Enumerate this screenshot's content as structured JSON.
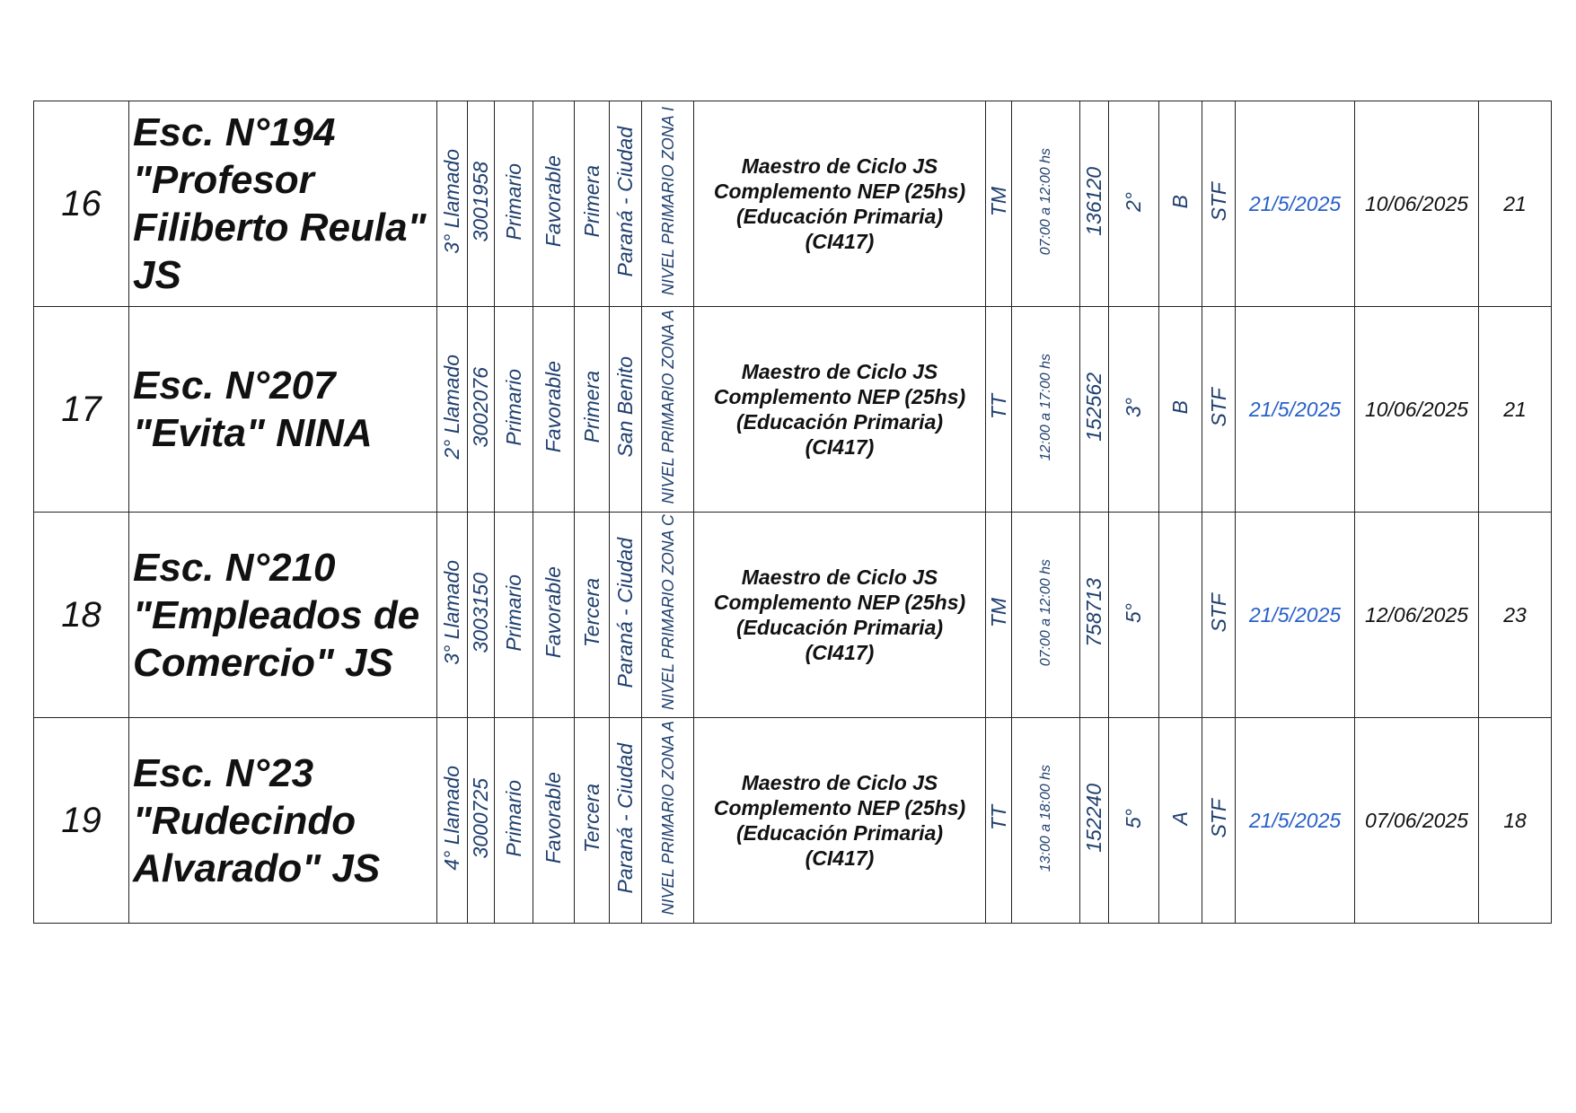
{
  "rows": [
    {
      "num": "16",
      "school": "Esc. N°194 \"Profesor Filiberto Reula\" JS",
      "llamado": "3° Llamado",
      "code": "3001958",
      "level": "Primario",
      "status": "Favorable",
      "category": "Primera",
      "location": "Paraná - Ciudad",
      "zone": "NIVEL PRIMARIO ZONA I",
      "cargo": [
        "Maestro de Ciclo JS",
        "Complemento NEP (25hs)",
        "(Educación Primaria)",
        "(CI417)"
      ],
      "turno": "TM",
      "horario": "07:00 a 12:00 hs",
      "id": "136120",
      "grado": "2°",
      "seccion": "B",
      "tipo": "STF",
      "fecha1": "21/5/2025",
      "fecha2": "10/06/2025",
      "dias": "21"
    },
    {
      "num": "17",
      "school": "Esc. N°207 \"Evita\" NINA",
      "llamado": "2° Llamado",
      "code": "3002076",
      "level": "Primario",
      "status": "Favorable",
      "category": "Primera",
      "location": "San Benito",
      "zone": "NIVEL PRIMARIO ZONA A",
      "cargo": [
        "Maestro de Ciclo JS",
        "Complemento NEP (25hs)",
        "(Educación Primaria)",
        "(CI417)"
      ],
      "turno": "TT",
      "horario": "12:00 a 17:00 hs",
      "id": "152562",
      "grado": "3°",
      "seccion": "B",
      "tipo": "STF",
      "fecha1": "21/5/2025",
      "fecha2": "10/06/2025",
      "dias": "21"
    },
    {
      "num": "18",
      "school": "Esc. N°210 \"Empleados de Comercio\" JS",
      "llamado": "3° Llamado",
      "code": "3003150",
      "level": "Primario",
      "status": "Favorable",
      "category": "Tercera",
      "location": "Paraná - Ciudad",
      "zone": "NIVEL PRIMARIO ZONA C",
      "cargo": [
        "Maestro de Ciclo JS",
        "Complemento NEP (25hs)",
        "(Educación Primaria)",
        "(CI417)"
      ],
      "turno": "TM",
      "horario": "07:00 a 12:00 hs",
      "id": "758713",
      "grado": "5°",
      "seccion": "",
      "tipo": "STF",
      "fecha1": "21/5/2025",
      "fecha2": "12/06/2025",
      "dias": "23"
    },
    {
      "num": "19",
      "school": "Esc. N°23 \"Rudecindo Alvarado\" JS",
      "llamado": "4° Llamado",
      "code": "3000725",
      "level": "Primario",
      "status": "Favorable",
      "category": "Tercera",
      "location": "Paraná - Ciudad",
      "zone": "NIVEL PRIMARIO ZONA A",
      "cargo": [
        "Maestro de Ciclo JS",
        "Complemento NEP (25hs)",
        "(Educación Primaria)",
        "(CI417)"
      ],
      "turno": "TT",
      "horario": "13:00 a 18:00 hs",
      "id": "152240",
      "grado": "5°",
      "seccion": "A",
      "tipo": "STF",
      "fecha1": "21/5/2025",
      "fecha2": "07/06/2025",
      "dias": "18"
    }
  ],
  "colors": {
    "vertical_text": "#1f3f6e",
    "start_date": "#2860c8",
    "text": "#111111"
  }
}
